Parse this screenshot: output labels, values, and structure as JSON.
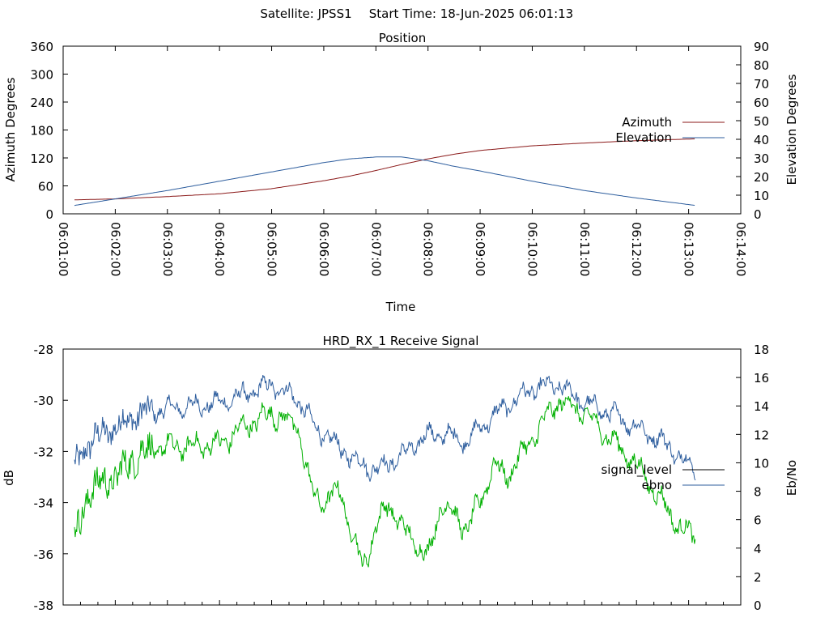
{
  "header": {
    "satellite": "Satellite: JPSS1",
    "start_time": "Start Time: 18-Jun-2025 06:01:13"
  },
  "chart_data": [
    {
      "type": "line",
      "title": "Position",
      "xlabel": "Time",
      "ylabel": "Azimuth Degrees",
      "y2label": "Elevation Degrees",
      "xlim": [
        "06:01:00",
        "06:14:00"
      ],
      "ylim": [
        0,
        360
      ],
      "y2lim": [
        0,
        90
      ],
      "xticks": [
        "06:01:00",
        "06:02:00",
        "06:03:00",
        "06:04:00",
        "06:05:00",
        "06:06:00",
        "06:07:00",
        "06:08:00",
        "06:09:00",
        "06:10:00",
        "06:11:00",
        "06:12:00",
        "06:13:00",
        "06:14:00"
      ],
      "yticks": [
        "0",
        "60",
        "120",
        "180",
        "240",
        "300",
        "360"
      ],
      "y2ticks": [
        "0",
        "10",
        "20",
        "30",
        "40",
        "50",
        "60",
        "70",
        "80",
        "90"
      ],
      "legend_position": "right",
      "series": [
        {
          "name": "Azimuth",
          "axis": "left",
          "color": "#8b1a1a",
          "x": [
            "06:01:13",
            "06:02:00",
            "06:03:00",
            "06:04:00",
            "06:05:00",
            "06:06:00",
            "06:06:30",
            "06:07:00",
            "06:07:30",
            "06:08:00",
            "06:08:30",
            "06:09:00",
            "06:10:00",
            "06:11:00",
            "06:12:00",
            "06:13:08"
          ],
          "y": [
            30,
            32,
            37,
            43,
            54,
            71,
            81,
            93,
            106,
            118,
            128,
            136,
            146,
            152,
            157,
            161
          ]
        },
        {
          "name": "Elevation",
          "axis": "right",
          "color": "#2e5e9e",
          "x": [
            "06:01:13",
            "06:02:00",
            "06:03:00",
            "06:04:00",
            "06:05:00",
            "06:06:00",
            "06:06:30",
            "06:07:00",
            "06:07:30",
            "06:08:00",
            "06:08:30",
            "06:09:00",
            "06:10:00",
            "06:11:00",
            "06:12:00",
            "06:13:08"
          ],
          "y": [
            4.5,
            8,
            12.5,
            17.5,
            22.5,
            27.5,
            29.5,
            30.5,
            30.5,
            28.5,
            25.5,
            23,
            17.5,
            12.5,
            8.5,
            4.5
          ]
        }
      ]
    },
    {
      "type": "line",
      "title": "HRD_RX_1 Receive Signal",
      "xlabel": "",
      "ylabel": "dB",
      "y2label": "Eb/No",
      "xlim": [
        "06:01:00",
        "06:14:00"
      ],
      "ylim": [
        -38,
        -28
      ],
      "y2lim": [
        0,
        18
      ],
      "yticks": [
        "-38",
        "-36",
        "-34",
        "-32",
        "-30",
        "-28"
      ],
      "y2ticks": [
        "0",
        "2",
        "4",
        "6",
        "8",
        "10",
        "12",
        "14",
        "16",
        "18"
      ],
      "legend_position": "right",
      "series": [
        {
          "name": "signal_level",
          "axis": "left",
          "color": "#000000",
          "x": [],
          "y": []
        },
        {
          "name": "ebno",
          "axis": "right",
          "color": "#2e5e9e",
          "x": [
            "06:01:13",
            "06:01:30",
            "06:02:00",
            "06:02:30",
            "06:03:00",
            "06:03:30",
            "06:04:00",
            "06:04:30",
            "06:05:00",
            "06:05:30",
            "06:05:50",
            "06:06:10",
            "06:06:40",
            "06:07:00",
            "06:07:30",
            "06:08:00",
            "06:08:20",
            "06:08:45",
            "06:09:00",
            "06:09:30",
            "06:10:00",
            "06:10:30",
            "06:11:00",
            "06:11:30",
            "06:12:00",
            "06:12:30",
            "06:13:08"
          ],
          "y": [
            9.5,
            11.5,
            12.5,
            13.5,
            13.8,
            14,
            14.2,
            14.8,
            15.5,
            14.5,
            12.5,
            11.5,
            10,
            9.5,
            10.5,
            12,
            12,
            11.5,
            12.5,
            14,
            15.2,
            15.5,
            14.2,
            13.5,
            12.5,
            11.5,
            9.5
          ]
        },
        {
          "name": "",
          "axis": "left",
          "color": "#00b000",
          "x": [
            "06:01:13",
            "06:01:30",
            "06:02:00",
            "06:02:30",
            "06:03:00",
            "06:03:30",
            "06:04:00",
            "06:04:30",
            "06:05:00",
            "06:05:30",
            "06:05:45",
            "06:06:00",
            "06:06:20",
            "06:06:30",
            "06:06:45",
            "06:07:00",
            "06:07:15",
            "06:07:30",
            "06:07:45",
            "06:08:00",
            "06:08:15",
            "06:08:30",
            "06:08:45",
            "06:09:00",
            "06:09:15",
            "06:09:30",
            "06:10:00",
            "06:10:30",
            "06:11:00",
            "06:11:30",
            "06:12:00",
            "06:12:30",
            "06:12:50",
            "06:13:08"
          ],
          "y": [
            -35.5,
            -33.5,
            -33,
            -32,
            -31.8,
            -31.8,
            -31.7,
            -31,
            -30.5,
            -31,
            -33.5,
            -34,
            -33.5,
            -35,
            -36.5,
            -35,
            -34,
            -35,
            -35.5,
            -36.2,
            -34,
            -34.5,
            -35,
            -34,
            -32.5,
            -33,
            -31.5,
            -30,
            -30.5,
            -31.5,
            -32.5,
            -34,
            -35,
            -35.3
          ]
        }
      ]
    }
  ]
}
